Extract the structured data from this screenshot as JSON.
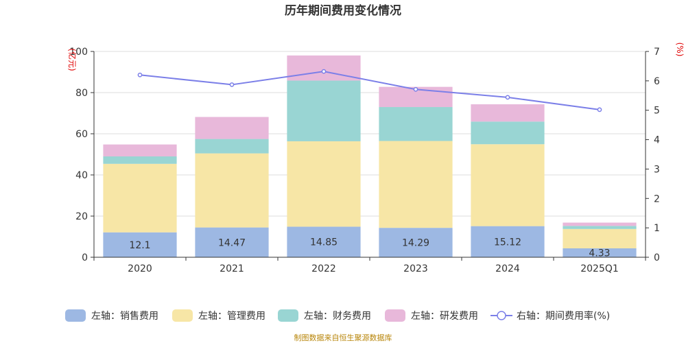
{
  "chart_data": {
    "type": "bar",
    "stacked": true,
    "title": "历年期间费用变化情况",
    "categories": [
      "2020",
      "2021",
      "2022",
      "2023",
      "2024",
      "2025Q1"
    ],
    "left_axis": {
      "unit": "(亿元)",
      "ylim": [
        0,
        100
      ],
      "ticks": [
        "0",
        "20",
        "40",
        "60",
        "80",
        "100"
      ]
    },
    "right_axis": {
      "unit": "(%)",
      "ylim": [
        0,
        7
      ],
      "ticks": [
        "0",
        "1",
        "2",
        "3",
        "4",
        "5",
        "6",
        "7"
      ]
    },
    "series": [
      {
        "name": "左轴：销售费用",
        "axis": "left",
        "color": "#9db8e3",
        "values": [
          12.1,
          14.47,
          14.85,
          14.29,
          15.12,
          4.33
        ],
        "labels": [
          "12.1",
          "14.47",
          "14.85",
          "14.29",
          "15.12",
          "4.33"
        ]
      },
      {
        "name": "左轴：管理费用",
        "axis": "left",
        "color": "#f7e6a6",
        "values": [
          33.3,
          36.0,
          41.5,
          42.2,
          39.8,
          9.4
        ]
      },
      {
        "name": "左轴：财务费用",
        "axis": "left",
        "color": "#99d5d3",
        "values": [
          3.6,
          7.0,
          29.5,
          16.5,
          11.0,
          1.5
        ]
      },
      {
        "name": "左轴：研发费用",
        "axis": "left",
        "color": "#e8b8da",
        "values": [
          5.8,
          10.7,
          12.2,
          9.8,
          8.4,
          1.6
        ]
      },
      {
        "name": "右轴：期间费用率(%)",
        "axis": "right",
        "type": "line",
        "color": "#7b7fe8",
        "values": [
          6.2,
          5.87,
          6.32,
          5.71,
          5.44,
          5.02
        ]
      }
    ],
    "grid": true,
    "legend_position": "bottom"
  },
  "footer": {
    "source": "制图数据来自恒生聚源数据库"
  }
}
